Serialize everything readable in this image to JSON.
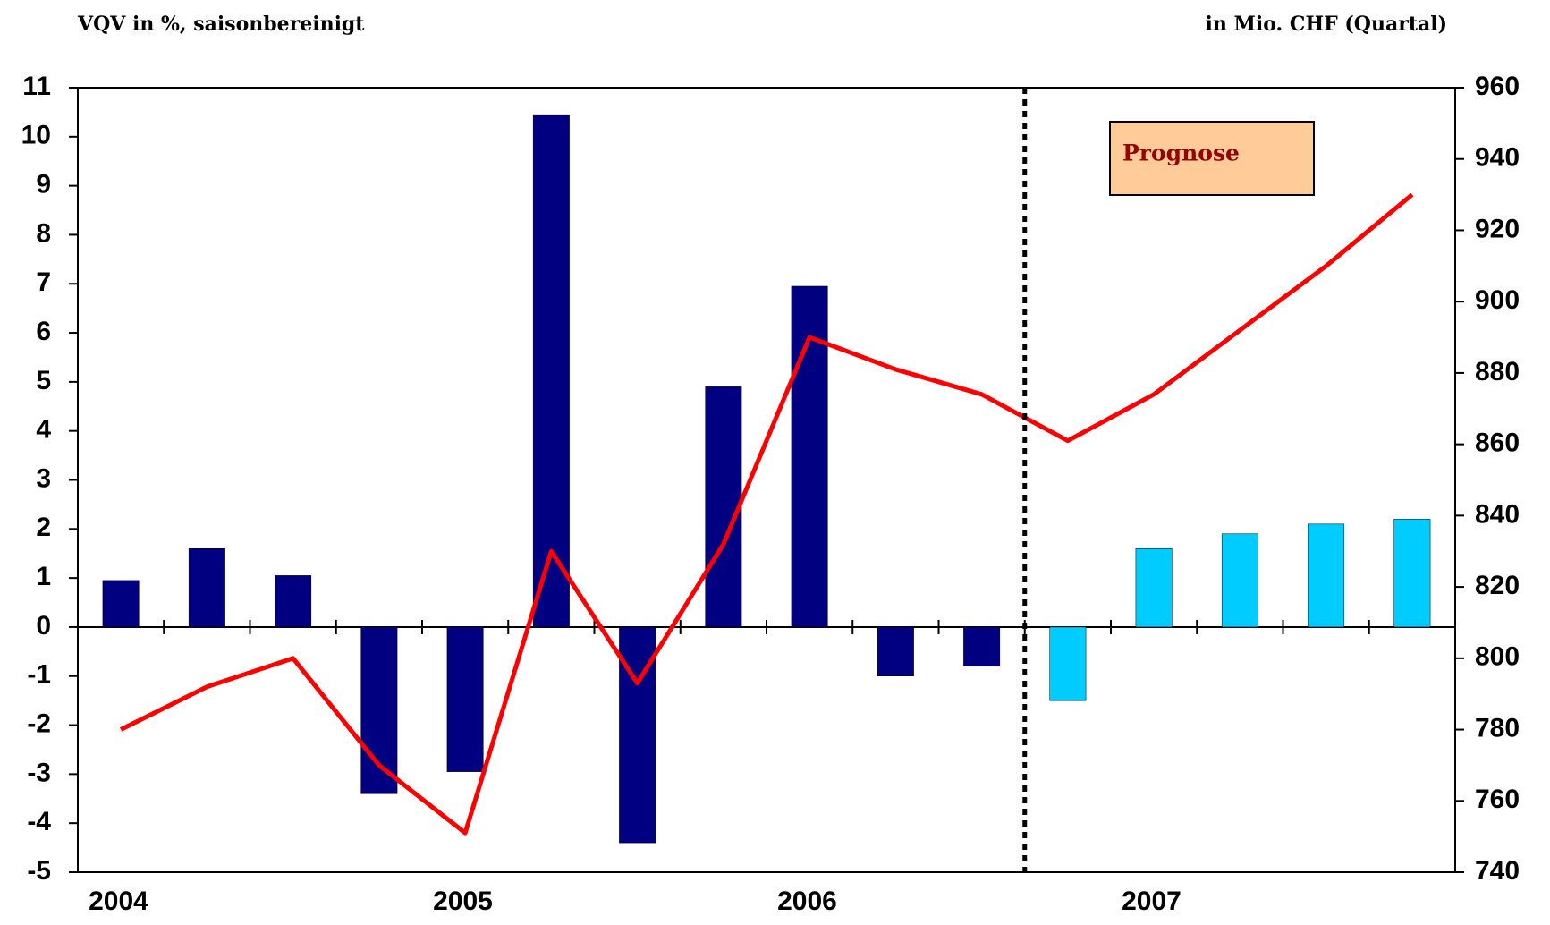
{
  "chart_data": {
    "type": "bar",
    "left_title": "VQV in %, saisonbereinigt",
    "right_title": "in Mio. CHF (Quartal)",
    "annotation": "Prognose",
    "categories": [
      "2004",
      null,
      null,
      null,
      "2005",
      null,
      null,
      null,
      "2006",
      null,
      null,
      null,
      "2007",
      null,
      null,
      null
    ],
    "series": [
      {
        "color": "#000080",
        "values": [
          0.95,
          1.6,
          1.05,
          -3.4,
          -2.95,
          10.45,
          -4.4,
          4.9,
          6.95,
          -1.0,
          -0.8,
          null,
          null,
          null,
          null,
          null
        ]
      },
      {
        "color": "#00ccff",
        "values": [
          null,
          null,
          null,
          null,
          null,
          null,
          null,
          null,
          null,
          null,
          null,
          -1.5,
          1.6,
          1.9,
          2.1,
          2.2
        ]
      },
      {
        "type": "line",
        "axis": "y2",
        "color": "#ff0000",
        "values": [
          780,
          792,
          800,
          770,
          751,
          830,
          793,
          832,
          890,
          881,
          874,
          861,
          874,
          892,
          910,
          930
        ]
      }
    ],
    "ylim": [
      -5,
      11
    ],
    "yticks": [
      -5,
      -4,
      -3,
      -2,
      -1,
      0,
      1,
      2,
      3,
      4,
      5,
      6,
      7,
      8,
      9,
      10,
      11
    ],
    "y2lim": [
      740,
      960
    ],
    "y2ticks": [
      740,
      760,
      780,
      800,
      820,
      840,
      860,
      880,
      900,
      920,
      940,
      960
    ]
  }
}
